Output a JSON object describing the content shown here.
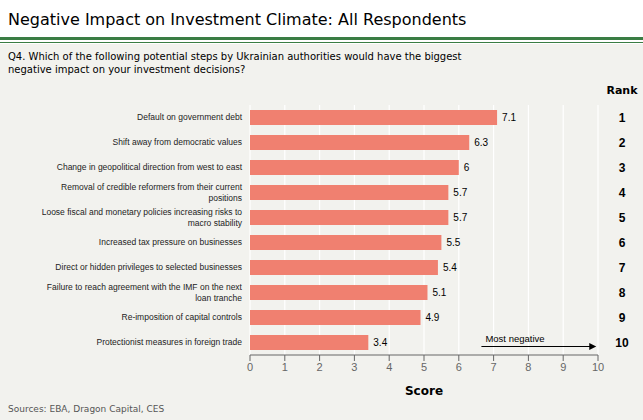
{
  "chart_data": {
    "type": "bar",
    "orientation": "horizontal",
    "title": "Negative Impact on Investment Climate: All Respondents",
    "subtitle": "Q4. Which of the following potential steps by Ukrainian authorities would have the biggest\nnegative impact on your investment decisions?",
    "x_label": "Score",
    "categories": [
      "Default on government debt",
      "Shift away from democratic values",
      "Change in geopolitical direction from west to east",
      "Removal of credible reformers from their current\npositions",
      "Loose fiscal and monetary policies increasing risks to\nmacro stability",
      "Increased tax pressure on businesses",
      "Direct or hidden privileges to selected businesses",
      "Failure to reach agreement with the IMF on the next\nloan tranche",
      "Re-imposition of capital controls",
      "Protectionist measures in foreign trade"
    ],
    "values": [
      7.1,
      6.3,
      6.0,
      5.7,
      5.7,
      5.5,
      5.4,
      5.1,
      4.9,
      3.4
    ],
    "color": "#F08070",
    "xlim": [
      0,
      10
    ],
    "xticks": [
      0,
      1,
      2,
      3,
      4,
      5,
      6,
      7,
      8,
      9,
      10
    ],
    "grid": true,
    "data_labels": true,
    "rank_label": "Rank",
    "ranks": [
      "1",
      "2",
      "3",
      "4",
      "5",
      "6",
      "7",
      "8",
      "9",
      "10"
    ],
    "annotations": [
      {
        "text": "Most negative",
        "arrow": [
          6.65,
          9.95
        ]
      }
    ],
    "source": "Sources: EBA, Dragon Capital, CES"
  }
}
